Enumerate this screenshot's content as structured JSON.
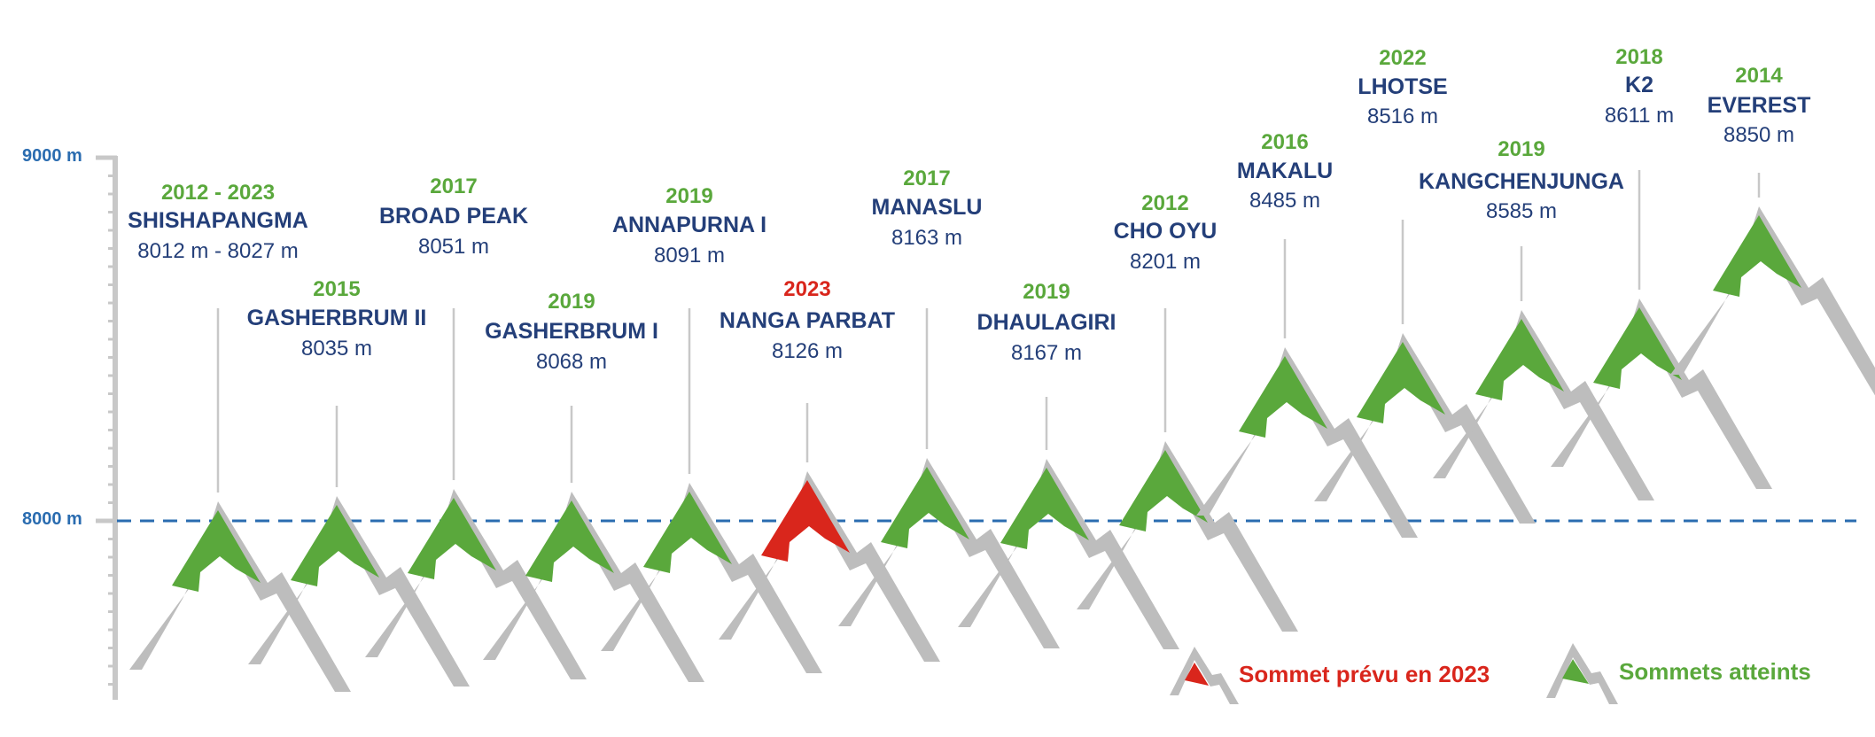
{
  "axis": {
    "top_label": "9000 m",
    "ref_label": "8000 m"
  },
  "colors": {
    "attained": "#5aa83c",
    "planned": "#d9261c",
    "ridge": "#bdbdbd",
    "name_text": "#243f79",
    "axis_text": "#2a6cb0",
    "axis_line": "#c8c8c8",
    "ref_line": "#2a6cb0"
  },
  "peaks": [
    {
      "year": "2012 - 2023",
      "name": "SHISHAPANGMA",
      "elevation": "8012 m - 8027 m",
      "status": "attained"
    },
    {
      "year": "2015",
      "name": "GASHERBRUM II",
      "elevation": "8035 m",
      "status": "attained"
    },
    {
      "year": "2017",
      "name": "BROAD PEAK",
      "elevation": "8051 m",
      "status": "attained"
    },
    {
      "year": "2019",
      "name": "GASHERBRUM I",
      "elevation": "8068 m",
      "status": "attained"
    },
    {
      "year": "2019",
      "name": "ANNAPURNA I",
      "elevation": "8091 m",
      "status": "attained"
    },
    {
      "year": "2023",
      "name": "NANGA PARBAT",
      "elevation": "8126 m",
      "status": "planned"
    },
    {
      "year": "2017",
      "name": "MANASLU",
      "elevation": "8163 m",
      "status": "attained"
    },
    {
      "year": "2019",
      "name": "DHAULAGIRI",
      "elevation": "8167 m",
      "status": "attained"
    },
    {
      "year": "2012",
      "name": "CHO OYU",
      "elevation": "8201 m",
      "status": "attained"
    },
    {
      "year": "2016",
      "name": "MAKALU",
      "elevation": "8485 m",
      "status": "attained"
    },
    {
      "year": "2022",
      "name": "LHOTSE",
      "elevation": "8516 m",
      "status": "attained"
    },
    {
      "year": "2019",
      "name": "KANGCHENJUNGA",
      "elevation": "8585 m",
      "status": "attained"
    },
    {
      "year": "2018",
      "name": "K2",
      "elevation": "8611 m",
      "status": "attained"
    },
    {
      "year": "2014",
      "name": "EVEREST",
      "elevation": "8850 m",
      "status": "attained"
    }
  ],
  "legend": {
    "planned_label": "Sommet prévu en 2023",
    "attained_label": "Sommets atteints"
  }
}
